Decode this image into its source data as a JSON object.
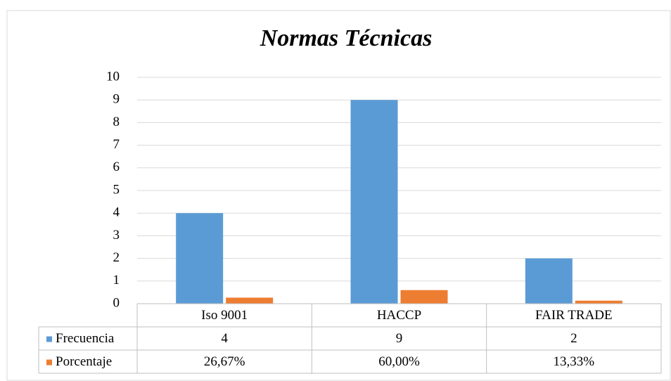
{
  "chart_data": {
    "type": "bar",
    "title": "Normas Técnicas",
    "categories": [
      "Iso 9001",
      "HACCP",
      "FAIR TRADE"
    ],
    "series": [
      {
        "name": "Frecuencia",
        "color": "#5b9bd5",
        "values": [
          4,
          9,
          2
        ]
      },
      {
        "name": "Porcentaje",
        "color": "#ed7d31",
        "values": [
          0.2667,
          0.6,
          0.1333
        ],
        "value_labels": [
          "26,67%",
          "60,00%",
          "13,33%"
        ]
      }
    ],
    "ylim": [
      0,
      10
    ],
    "yticks": [
      0,
      1,
      2,
      3,
      4,
      5,
      6,
      7,
      8,
      9,
      10
    ],
    "grid": true
  }
}
